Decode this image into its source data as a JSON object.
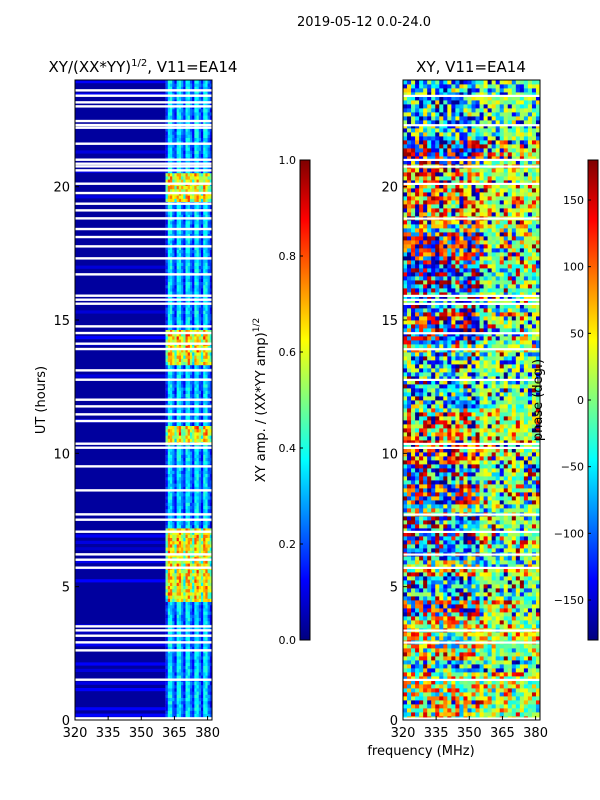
{
  "suptitle": "2019-05-12 0.0-24.0",
  "colors": {
    "jet": [
      "#00007f",
      "#0000ff",
      "#007fff",
      "#00ffff",
      "#7fff7f",
      "#ffff00",
      "#ff7f00",
      "#ff0000",
      "#7f0000"
    ],
    "gap": "#ffffff"
  },
  "chart_data": [
    {
      "type": "heatmap",
      "title_main": "XY/(XX*YY)",
      "title_exp": "1/2",
      "title_suffix": ", V11=EA14",
      "xlabel": "",
      "ylabel": "UT (hours)",
      "xlim": [
        320,
        382
      ],
      "ylim": [
        0,
        24
      ],
      "xticks": [
        320,
        335,
        350,
        365,
        380
      ],
      "yticks": [
        0,
        5,
        10,
        15,
        20
      ],
      "bright_channels_mhz": [
        361,
        382
      ],
      "bright_time_ranges_hours": [
        [
          4.5,
          7.2
        ],
        [
          10.3,
          11.0
        ],
        [
          13.3,
          14.6
        ],
        [
          19.5,
          20.5
        ]
      ],
      "flagged_time_gaps_hours": [
        0.05,
        1.5,
        2.6,
        2.9,
        3.15,
        3.35,
        3.5,
        5.7,
        6.0,
        6.2,
        7.05,
        7.5,
        7.7,
        8.6,
        9.5,
        10.2,
        10.35,
        11.2,
        11.45,
        11.75,
        12.0,
        12.75,
        13.1,
        13.9,
        14.1,
        14.5,
        14.75,
        15.6,
        15.75,
        15.9,
        16.7,
        17.3,
        17.75,
        18.1,
        18.4,
        18.8,
        19.1,
        19.35,
        19.75,
        20.1,
        20.6,
        20.75,
        20.85,
        21.0,
        21.6,
        22.2,
        22.3,
        22.45,
        23.0,
        23.15,
        23.4,
        23.6
      ],
      "colorbar": {
        "label_main": "XY amp. / (XX*YY amp)",
        "label_exp": "1/2",
        "vmin": 0.0,
        "vmax": 1.0,
        "ticks": [
          "0.0",
          "0.2",
          "0.4",
          "0.6",
          "0.8",
          "1.0"
        ],
        "tick_values": [
          0.0,
          0.2,
          0.4,
          0.6,
          0.8,
          1.0
        ]
      }
    },
    {
      "type": "heatmap",
      "title_main": "XY, V11=EA14",
      "xlabel": "frequency (MHz)",
      "ylabel": "",
      "xlim": [
        320,
        382
      ],
      "ylim": [
        0,
        24
      ],
      "xticks": [
        320,
        335,
        350,
        365,
        380
      ],
      "yticks": [
        0,
        5,
        10,
        15,
        20
      ],
      "flagged_time_gaps_hours": [
        0.05,
        1.5,
        2.9,
        3.35,
        5.7,
        6.2,
        7.05,
        7.7,
        10.2,
        10.35,
        12.75,
        13.9,
        14.5,
        15.6,
        15.75,
        15.9,
        18.8,
        20.1,
        20.75,
        21.0,
        22.3,
        23.4
      ],
      "colorbar": {
        "label_main": "phase (deg.)",
        "vmin": -180,
        "vmax": 180,
        "ticks": [
          "150",
          "100",
          "50",
          "0",
          "−50",
          "−100",
          "−150"
        ],
        "tick_values": [
          150,
          100,
          50,
          0,
          -50,
          -100,
          -150
        ]
      }
    }
  ]
}
